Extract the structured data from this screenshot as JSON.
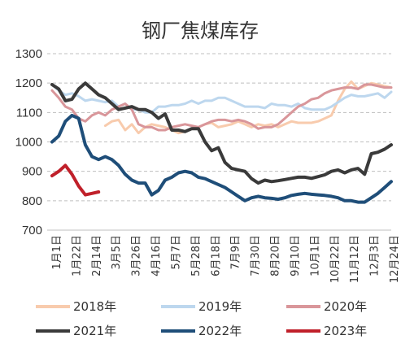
{
  "chart_data": {
    "type": "line",
    "title": "钢厂焦煤库存",
    "xlabel": "",
    "ylabel": "",
    "ylim": [
      700,
      1300
    ],
    "yticks": [
      700,
      800,
      900,
      1000,
      1100,
      1200,
      1300
    ],
    "x_ticks": [
      "1月1日",
      "1月22日",
      "2月14日",
      "3月5日",
      "3月26日",
      "4月16日",
      "5月7日",
      "5月28日",
      "6月18日",
      "7月9日",
      "7月30日",
      "8月20日",
      "9月10日",
      "10月1日",
      "10月22日",
      "11月12日",
      "12月3日",
      "12月24日"
    ],
    "n_points": 52,
    "grid": true,
    "legend_position": "bottom",
    "series": [
      {
        "name": "2018年",
        "color": "#f8cbad",
        "width": 3,
        "start": 8,
        "values": [
          1055,
          1070,
          1075,
          1040,
          1060,
          1030,
          1050,
          1060,
          1055,
          1050,
          1040,
          1030,
          1035,
          1045,
          1050,
          1060,
          1065,
          1050,
          1055,
          1060,
          1070,
          1060,
          1050,
          1060,
          1055,
          1060,
          1050,
          1060,
          1070,
          1065,
          1065,
          1065,
          1070,
          1080,
          1090,
          1140,
          1180,
          1205,
          1180,
          1190,
          1200,
          1195,
          1190,
          1185
        ]
      },
      {
        "name": "2019年",
        "color": "#bdd7ee",
        "width": 3,
        "start": 0,
        "values": [
          1195,
          1175,
          1160,
          1165,
          1155,
          1140,
          1145,
          1140,
          1135,
          1140,
          1120,
          1130,
          1110,
          1110,
          1100,
          1100,
          1120,
          1120,
          1125,
          1125,
          1130,
          1140,
          1130,
          1140,
          1140,
          1150,
          1150,
          1140,
          1130,
          1120,
          1120,
          1120,
          1115,
          1130,
          1125,
          1125,
          1120,
          1130,
          1115,
          1110,
          1110,
          1110,
          1120,
          1135,
          1150,
          1160,
          1155,
          1155,
          1160,
          1165,
          1150,
          1170
        ]
      },
      {
        "name": "2020年",
        "color": "#d9969a",
        "width": 3,
        "start": 0,
        "values": [
          1175,
          1150,
          1120,
          1110,
          1080,
          1070,
          1090,
          1100,
          1090,
          1110,
          1120,
          1130,
          1110,
          1060,
          1050,
          1050,
          1040,
          1040,
          1050,
          1055,
          1060,
          1055,
          1050,
          1060,
          1070,
          1075,
          1075,
          1070,
          1075,
          1070,
          1060,
          1045,
          1050,
          1050,
          1060,
          1080,
          1100,
          1120,
          1130,
          1145,
          1150,
          1165,
          1175,
          1180,
          1185,
          1185,
          1180,
          1195,
          1195,
          1190,
          1185,
          1185
        ]
      },
      {
        "name": "2021年",
        "color": "#3a3a3a",
        "width": 4,
        "start": 0,
        "values": [
          1195,
          1180,
          1140,
          1145,
          1180,
          1200,
          1180,
          1160,
          1150,
          1130,
          1110,
          1115,
          1120,
          1110,
          1110,
          1100,
          1080,
          1095,
          1040,
          1040,
          1035,
          1045,
          1045,
          1000,
          970,
          980,
          930,
          910,
          905,
          900,
          875,
          860,
          870,
          865,
          868,
          872,
          876,
          880,
          880,
          876,
          882,
          888,
          900,
          905,
          895,
          905,
          910,
          890,
          960,
          965,
          975,
          990
        ]
      },
      {
        "name": "2022年",
        "color": "#1f4e79",
        "width": 4,
        "start": 0,
        "values": [
          1000,
          1020,
          1070,
          1090,
          1080,
          990,
          950,
          940,
          950,
          940,
          920,
          890,
          870,
          860,
          860,
          820,
          835,
          870,
          880,
          895,
          900,
          895,
          880,
          875,
          865,
          855,
          845,
          830,
          815,
          800,
          810,
          815,
          810,
          808,
          805,
          810,
          818,
          822,
          825,
          822,
          820,
          818,
          815,
          810,
          800,
          800,
          795,
          795,
          810,
          825,
          845,
          865
        ]
      },
      {
        "name": "2023年",
        "color": "#c0202a",
        "width": 4,
        "start": 0,
        "values": [
          885,
          900,
          920,
          890,
          850,
          820,
          825,
          830
        ]
      }
    ]
  }
}
